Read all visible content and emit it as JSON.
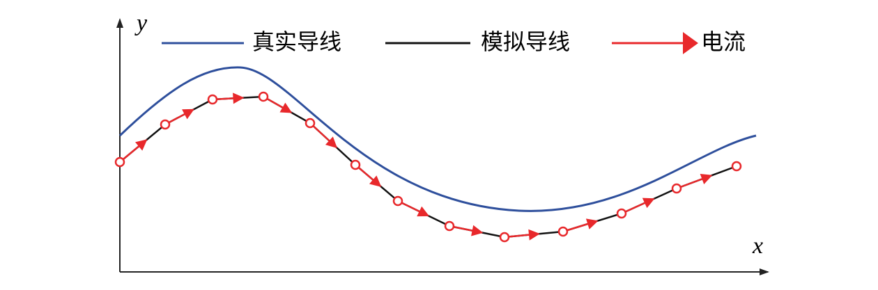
{
  "axes": {
    "y_label": "y",
    "x_label": "x"
  },
  "legend": {
    "items": [
      {
        "label": "真实导线"
      },
      {
        "label": "模拟导线"
      },
      {
        "label": "电流"
      }
    ]
  }
}
